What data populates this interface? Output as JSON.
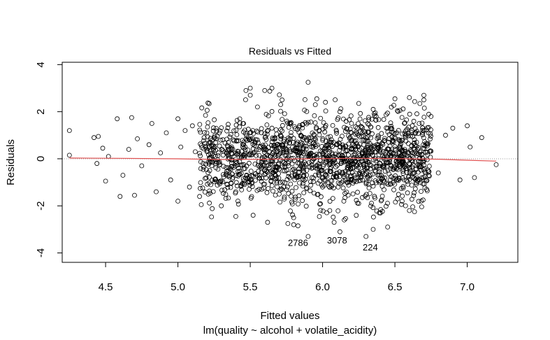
{
  "chart_data": {
    "type": "scatter",
    "title": "Residuals vs Fitted",
    "xlabel": "Fitted values",
    "subtitle": "lm(quality ~ alcohol + volatile_acidity)",
    "ylabel": "Residuals",
    "xlim": [
      4.2,
      7.35
    ],
    "ylim": [
      -4.4,
      4.1
    ],
    "xticks": [
      4.5,
      5.0,
      5.5,
      6.0,
      6.5,
      7.0
    ],
    "xtick_labels": [
      "4.5",
      "5.0",
      "5.5",
      "6.0",
      "6.5",
      "7.0"
    ],
    "yticks": [
      -4,
      -2,
      0,
      2,
      4
    ],
    "ytick_labels": [
      "-4",
      "-2",
      "0",
      "2",
      "4"
    ],
    "reference_line": {
      "y": 0,
      "style": "dotted",
      "color": "#999999"
    },
    "smooth_line": {
      "color": "#e05050",
      "x": [
        4.25,
        4.6,
        5.0,
        5.3,
        5.6,
        5.9,
        6.2,
        6.5,
        6.8,
        7.0,
        7.2
      ],
      "y": [
        0.03,
        0.02,
        0.0,
        -0.03,
        -0.02,
        0.0,
        0.02,
        0.01,
        -0.02,
        -0.06,
        -0.1
      ]
    },
    "points": {
      "marker": "open-circle",
      "x": [
        4.25,
        4.25,
        4.42,
        4.44,
        4.45,
        4.48,
        4.5,
        4.52,
        4.58,
        4.6,
        4.62,
        4.66,
        4.68,
        4.7,
        4.72,
        4.75,
        4.8,
        4.82,
        4.85,
        4.88,
        4.92,
        4.95,
        5.0,
        5.0,
        5.02,
        5.05,
        5.08,
        5.1,
        5.12,
        5.15,
        5.2,
        5.22,
        5.25,
        5.3,
        5.35,
        5.4,
        5.45,
        5.5,
        5.52,
        5.55,
        5.6,
        5.62,
        5.65,
        5.7,
        5.72,
        5.75,
        5.8,
        5.85,
        5.9,
        5.95,
        6.0,
        6.02,
        6.05,
        6.1,
        6.12,
        6.15,
        6.2,
        6.25,
        6.3,
        6.35,
        6.4,
        6.45,
        6.5,
        6.55,
        6.6,
        6.65,
        6.7,
        6.72,
        6.75,
        6.8,
        6.85,
        6.9,
        6.95,
        7.0,
        7.02,
        7.05,
        7.1,
        7.2,
        5.47,
        5.5,
        5.55,
        5.65,
        5.8,
        5.96,
        6.08,
        6.12,
        6.3,
        6.35,
        5.76,
        5.83,
        6.6,
        6.45,
        5.4,
        5.9,
        6.25,
        6.7
      ],
      "y": [
        1.2,
        0.15,
        0.9,
        -0.2,
        0.95,
        0.45,
        -0.95,
        0.1,
        1.7,
        -1.6,
        -0.7,
        0.4,
        1.75,
        -1.55,
        0.85,
        -0.3,
        0.6,
        1.5,
        -1.4,
        0.25,
        1.1,
        -0.9,
        1.7,
        -1.8,
        0.5,
        1.2,
        -1.2,
        1.4,
        0.3,
        -1.6,
        1.1,
        -0.5,
        0.9,
        -2.0,
        0.7,
        -1.4,
        1.5,
        3.0,
        -2.4,
        0.8,
        2.9,
        -2.7,
        1.3,
        -1.5,
        2.5,
        0.4,
        -2.8,
        1.0,
        -3.3,
        2.3,
        -1.2,
        2.4,
        -2.2,
        0.6,
        2.0,
        -2.6,
        1.5,
        -1.9,
        0.9,
        2.1,
        -2.3,
        1.3,
        2.55,
        -1.8,
        2.6,
        0.7,
        2.7,
        -1.3,
        1.8,
        -0.6,
        1.0,
        1.3,
        -0.9,
        1.4,
        0.5,
        -0.8,
        0.9,
        -0.25,
        2.9,
        2.7,
        2.2,
        3.0,
        -2.5,
        2.55,
        -2.7,
        -3.1,
        -3.3,
        -3.0,
        -2.75,
        -2.85,
        -2.2,
        -2.9,
        -2.45,
        3.25,
        2.35,
        2.5
      ],
      "labelled": [
        {
          "id": "2786",
          "x": 5.83,
          "y": -3.55
        },
        {
          "id": "3078",
          "x": 6.1,
          "y": -3.45
        },
        {
          "id": "224",
          "x": 6.33,
          "y": -3.75
        }
      ]
    },
    "grid": false
  }
}
